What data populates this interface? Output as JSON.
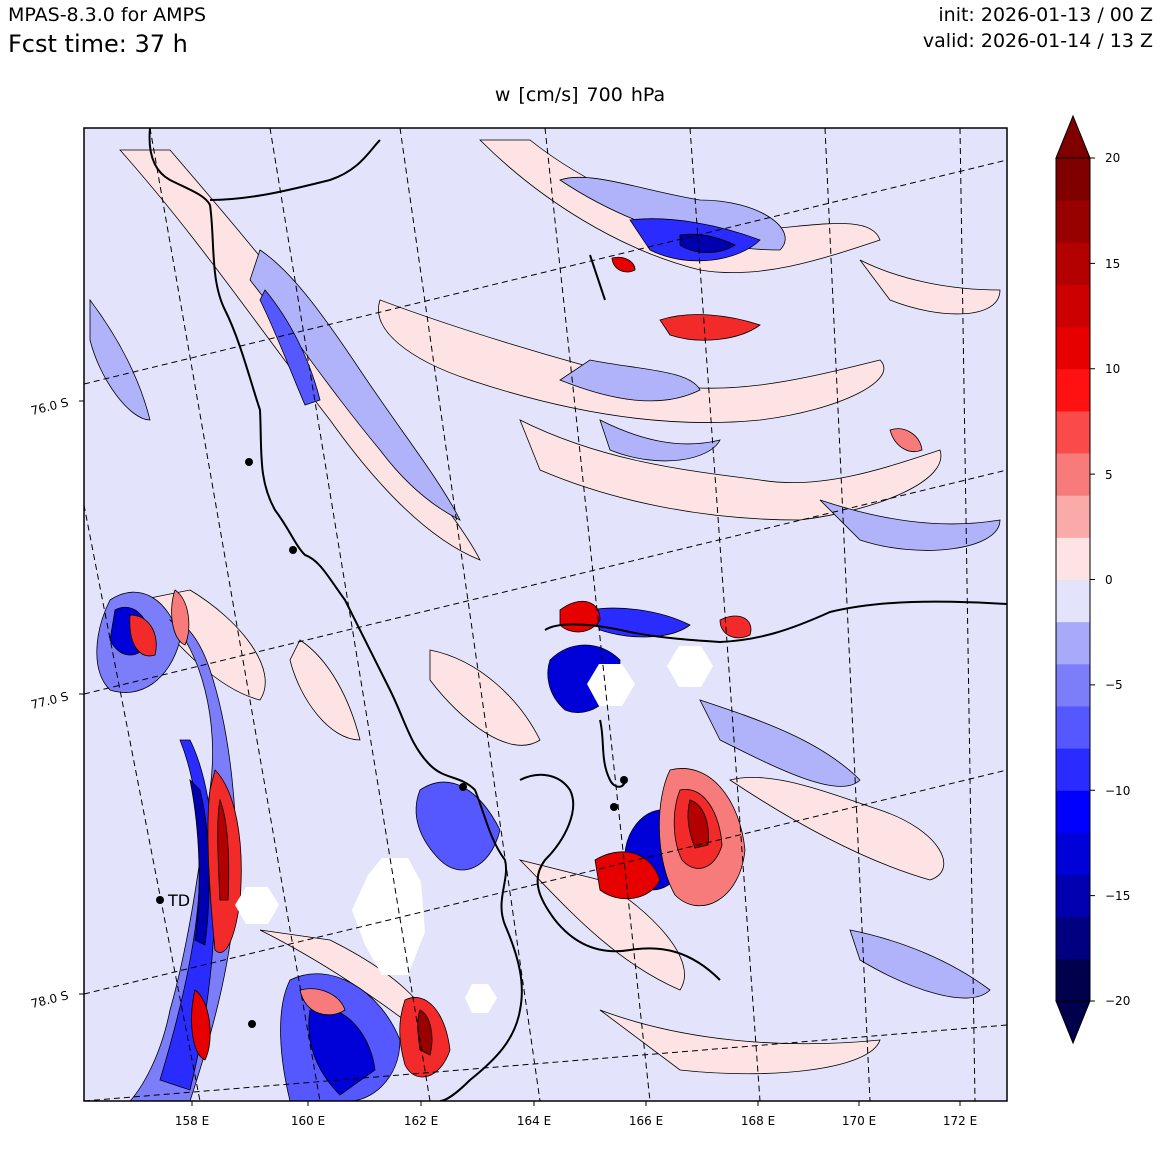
{
  "header": {
    "model": "MPAS-8.3.0 for AMPS",
    "forecast_time": "Fcst time:   37 h",
    "init": "init: 2026-01-13 / 00 Z",
    "valid": "valid: 2026-01-14 / 13 Z"
  },
  "plot_title": "w [cm/s]    700 hPa",
  "map": {
    "lat_labels": [
      "76.0 S",
      "77.0 S",
      "78.0 S"
    ],
    "lon_labels": [
      "158 E",
      "160 E",
      "162 E",
      "164 E",
      "166 E",
      "168 E",
      "170 E",
      "172 E"
    ],
    "station_label": "TD",
    "colors": {
      "faint_blue": "#e3e4fb",
      "faint_red": "#fde3e3",
      "light_blue": "#b0b2fa",
      "light_red": "#fbb0b0",
      "mid_blue": "#7b7df9",
      "mid_red": "#f87b7b",
      "strong_blue": "#2a2cf4",
      "strong_red": "#f22a2a",
      "dark_blue": "#0000a8",
      "dark_red": "#a80000",
      "missing": "#ffffff"
    }
  },
  "colorbar": {
    "tick_labels": [
      "20",
      "15",
      "10",
      "5",
      "0",
      "−5",
      "−10",
      "−15",
      "−20"
    ],
    "levels": [
      -20,
      -18,
      -16,
      -14,
      -12,
      -10,
      -8,
      -6,
      -4,
      -2,
      0,
      2,
      4,
      6,
      8,
      10,
      12,
      14,
      16,
      18,
      20
    ],
    "colors": [
      "#00004d",
      "#000080",
      "#0000b0",
      "#0000d8",
      "#0000ff",
      "#2a2cff",
      "#5557ff",
      "#7b7df9",
      "#a8aaf9",
      "#e3e4fb",
      "#fde3e3",
      "#fbaaaa",
      "#f87b7b",
      "#fa4a4a",
      "#ff1111",
      "#e60000",
      "#cc0000",
      "#b30000",
      "#990000",
      "#800000"
    ],
    "under_color": "#00004d",
    "over_color": "#800000"
  }
}
